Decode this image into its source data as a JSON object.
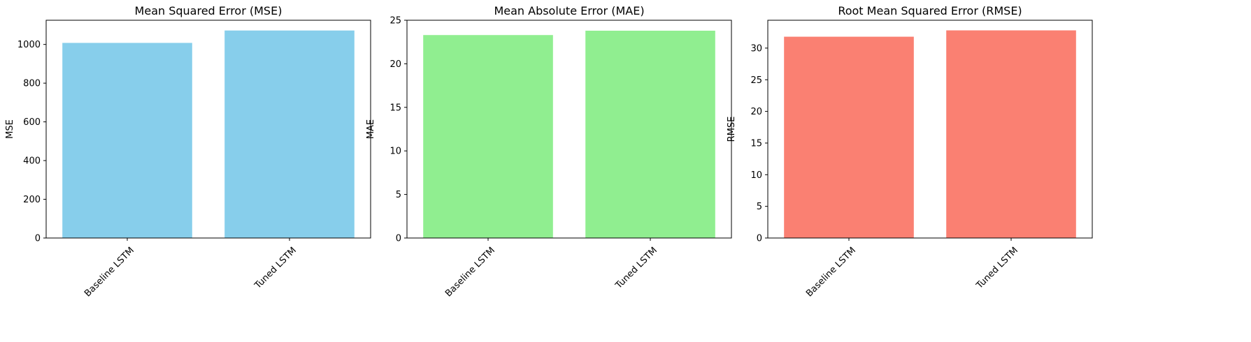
{
  "chart_data": [
    {
      "type": "bar",
      "title": "Mean Squared Error (MSE)",
      "xlabel": "",
      "ylabel": "MSE",
      "categories": [
        "Baseline LSTM",
        "Tuned LSTM"
      ],
      "values": [
        1008,
        1072
      ],
      "ylim": [
        0,
        1125
      ],
      "yticks": [
        0,
        200,
        400,
        600,
        800,
        1000
      ],
      "color": "#87ceeb",
      "grid": false,
      "xtick_rotation": 45
    },
    {
      "type": "bar",
      "title": "Mean Absolute Error (MAE)",
      "xlabel": "",
      "ylabel": "MAE",
      "categories": [
        "Baseline LSTM",
        "Tuned LSTM"
      ],
      "values": [
        23.3,
        23.8
      ],
      "ylim": [
        0,
        25
      ],
      "yticks": [
        0,
        5,
        10,
        15,
        20,
        25
      ],
      "color": "#90ee90",
      "grid": false,
      "xtick_rotation": 45
    },
    {
      "type": "bar",
      "title": "Root Mean Squared Error (RMSE)",
      "xlabel": "",
      "ylabel": "RMSE",
      "categories": [
        "Baseline LSTM",
        "Tuned LSTM"
      ],
      "values": [
        31.8,
        32.8
      ],
      "ylim": [
        0,
        34.4
      ],
      "yticks": [
        0,
        5,
        10,
        15,
        20,
        25,
        30
      ],
      "color": "#fa8072",
      "grid": false,
      "xtick_rotation": 45
    }
  ]
}
